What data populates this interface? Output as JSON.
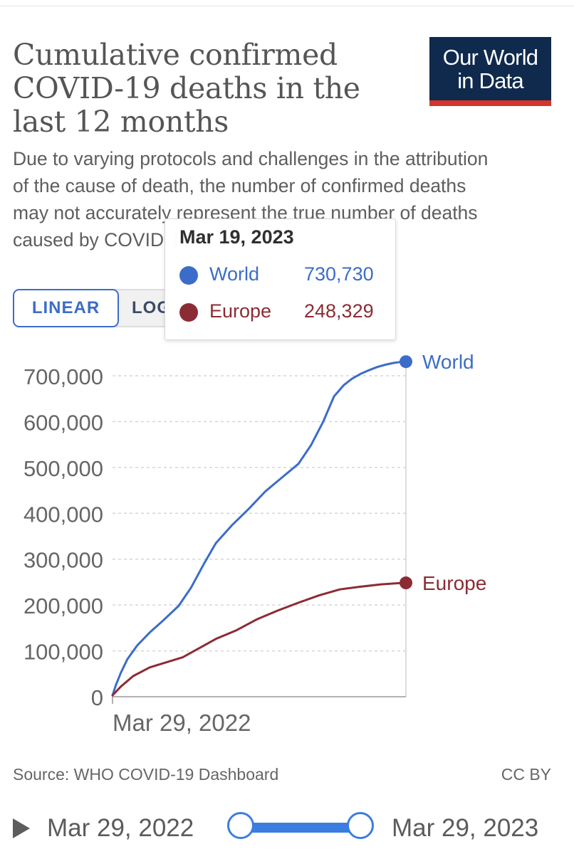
{
  "header": {
    "title": "Cumulative confirmed COVID-19 deaths in the last 12 months",
    "subtitle": "Due to varying protocols and challenges in the attribution of the cause of death, the number of confirmed deaths may not accurately represent the true number of deaths caused by COVID-19.",
    "logo_line1": "Our World",
    "logo_line2": "in Data"
  },
  "controls": {
    "linear_label": "LINEAR",
    "log_label": "LOG"
  },
  "tooltip": {
    "date": "Mar 19, 2023",
    "rows": [
      {
        "name": "World",
        "value": "730,730",
        "color": "#3b6dc8"
      },
      {
        "name": "Europe",
        "value": "248,329",
        "color": "#8b2c35"
      }
    ]
  },
  "chart_data": {
    "type": "line",
    "title": "Cumulative confirmed COVID-19 deaths in the last 12 months",
    "x_tick_labels": [
      "Mar 29, 2022"
    ],
    "y_tick_labels": [
      "0",
      "100,000",
      "200,000",
      "300,000",
      "400,000",
      "500,000",
      "600,000",
      "700,000"
    ],
    "y_ticks": [
      0,
      100000,
      200000,
      300000,
      400000,
      500000,
      600000,
      700000
    ],
    "ylim": [
      0,
      700000
    ],
    "x_range_days": [
      0,
      355
    ],
    "grid": "horizontal dashed",
    "legend": "end-of-line labels",
    "series": [
      {
        "name": "World",
        "color": "#3b6dc8",
        "x": [
          0,
          4,
          10,
          18,
          30,
          45,
          60,
          80,
          95,
          110,
          125,
          145,
          165,
          185,
          205,
          225,
          240,
          255,
          268,
          280,
          290,
          300,
          310,
          320,
          330,
          340,
          348,
          355
        ],
        "y": [
          3000,
          25000,
          52000,
          82000,
          112000,
          140000,
          164000,
          198000,
          238000,
          288000,
          335000,
          375000,
          410000,
          448000,
          478000,
          508000,
          548000,
          600000,
          655000,
          680000,
          694000,
          704000,
          712000,
          719000,
          724000,
          728000,
          730000,
          730730
        ]
      },
      {
        "name": "Europe",
        "color": "#8b2c35",
        "x": [
          0,
          10,
          25,
          45,
          65,
          85,
          105,
          125,
          150,
          175,
          200,
          225,
          250,
          275,
          300,
          325,
          345,
          355
        ],
        "y": [
          3000,
          22000,
          45000,
          64000,
          75000,
          86000,
          106000,
          126000,
          145000,
          169000,
          188000,
          205000,
          221000,
          234000,
          240000,
          245000,
          247500,
          248329
        ]
      }
    ]
  },
  "footer": {
    "source": "Source: WHO COVID-19 Dashboard",
    "license": "CC BY"
  },
  "timeline": {
    "start_label": "Mar 29, 2022",
    "end_label": "Mar 29, 2023"
  }
}
